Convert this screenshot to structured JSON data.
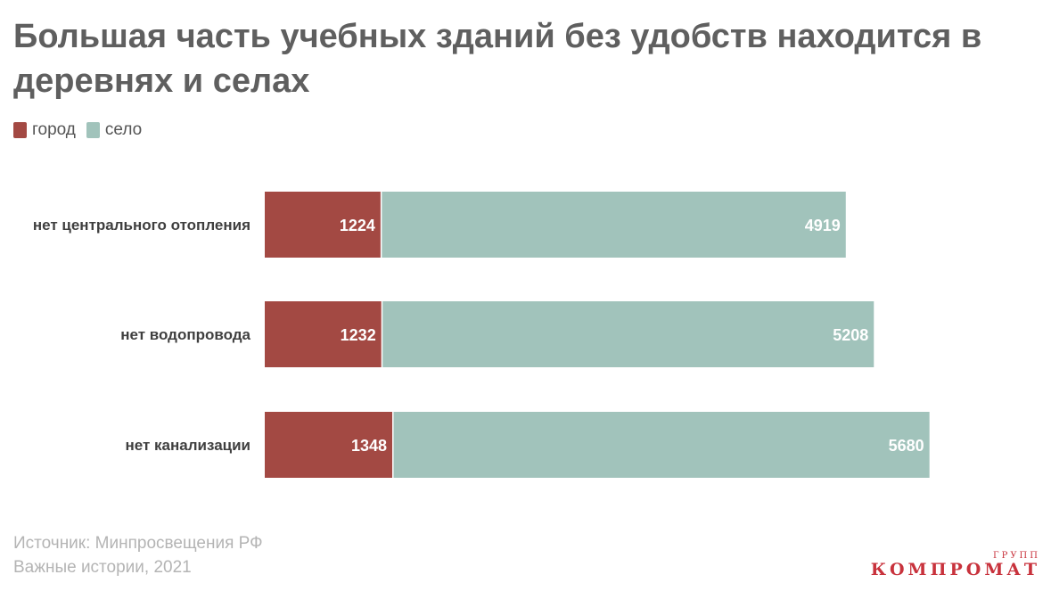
{
  "title": "Большая часть учебных зданий без удобств находится в деревнях и селах",
  "legend": {
    "items": [
      {
        "label": "город",
        "color": "#a34943"
      },
      {
        "label": "село",
        "color": "#a1c3bb"
      }
    ]
  },
  "chart_data": {
    "type": "bar",
    "orientation": "horizontal",
    "stacked": true,
    "categories": [
      "нет центрального отопления",
      "нет водопровода",
      "нет канализации"
    ],
    "series": [
      {
        "name": "город",
        "values": [
          1224,
          1232,
          1348
        ],
        "color": "#a34943"
      },
      {
        "name": "село",
        "values": [
          4919,
          5208,
          5680
        ],
        "color": "#a1c3bb"
      }
    ],
    "data_labels": true,
    "grid": false,
    "legend_position": "top-left"
  },
  "source": {
    "line1": "Источник: Минпросвещения РФ",
    "line2": "Важные истории, 2021"
  },
  "watermark": {
    "small": "ГРУПП",
    "main": "КОМПРОМАТ"
  }
}
